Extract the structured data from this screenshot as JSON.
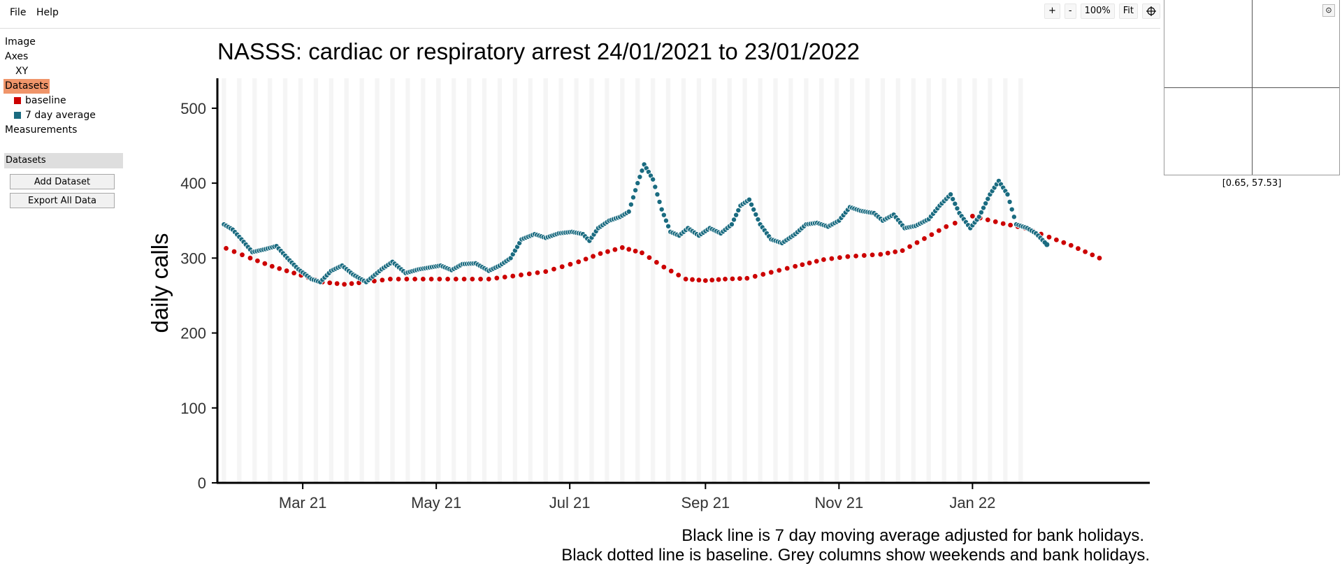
{
  "menu": {
    "file": "File",
    "help": "Help"
  },
  "toolbar": {
    "zoom_in": "+",
    "zoom_out": "-",
    "zoom_level": "100%",
    "fit": "Fit",
    "locate_icon": "crosshair-icon"
  },
  "tree": {
    "image": "Image",
    "axes": "Axes",
    "xy": "XY",
    "datasets": "Datasets",
    "dataset_items": [
      {
        "label": "baseline",
        "color": "#cc0000"
      },
      {
        "label": "7 day average",
        "color": "#1a6b80"
      }
    ],
    "measurements": "Measurements"
  },
  "datasets_panel": {
    "title": "Datasets",
    "add": "Add Dataset",
    "export": "Export All Data"
  },
  "preview": {
    "coordinate": "[0.65, 57.53]",
    "settings_icon": "target-icon"
  },
  "chart_data": {
    "type": "scatter",
    "title": "NASSS: cardiac or respiratory arrest 24/01/2021 to 23/01/2022",
    "ylabel": "daily calls",
    "xlabel": "",
    "ylim": [
      0,
      540
    ],
    "yticks": [
      0,
      100,
      200,
      300,
      400,
      500
    ],
    "xlim": [
      "2021-01-21",
      "2022-03-23"
    ],
    "xticks": [
      {
        "date": "2021-03-01",
        "label": "Mar 21"
      },
      {
        "date": "2021-05-01",
        "label": "May 21"
      },
      {
        "date": "2021-07-01",
        "label": "Jul 21"
      },
      {
        "date": "2021-09-01",
        "label": "Sep 21"
      },
      {
        "date": "2021-11-01",
        "label": "Nov 21"
      },
      {
        "date": "2022-01-01",
        "label": "Jan 22"
      }
    ],
    "grid": false,
    "captions": [
      "Black line is 7 day moving average adjusted for bank holidays.",
      "Black dotted line is baseline. Grey columns show weekends and bank holidays."
    ],
    "series": [
      {
        "name": "baseline",
        "color": "#cc0000",
        "points": [
          [
            "2021-01-25",
            313
          ],
          [
            "2021-02-05",
            300
          ],
          [
            "2021-02-15",
            289
          ],
          [
            "2021-02-25",
            280
          ],
          [
            "2021-03-10",
            268
          ],
          [
            "2021-03-20",
            265
          ],
          [
            "2021-03-30",
            268
          ],
          [
            "2021-04-10",
            272
          ],
          [
            "2021-04-25",
            272
          ],
          [
            "2021-05-10",
            272
          ],
          [
            "2021-05-25",
            272
          ],
          [
            "2021-06-05",
            276
          ],
          [
            "2021-06-20",
            282
          ],
          [
            "2021-07-05",
            295
          ],
          [
            "2021-07-15",
            306
          ],
          [
            "2021-07-25",
            314
          ],
          [
            "2021-08-03",
            307
          ],
          [
            "2021-08-13",
            288
          ],
          [
            "2021-08-23",
            272
          ],
          [
            "2021-09-01",
            270
          ],
          [
            "2021-09-10",
            272
          ],
          [
            "2021-09-20",
            273
          ],
          [
            "2021-10-01",
            281
          ],
          [
            "2021-10-12",
            289
          ],
          [
            "2021-10-25",
            298
          ],
          [
            "2021-11-05",
            302
          ],
          [
            "2021-11-20",
            305
          ],
          [
            "2021-11-30",
            310
          ],
          [
            "2021-12-10",
            326
          ],
          [
            "2021-12-20",
            342
          ],
          [
            "2022-01-01",
            356
          ],
          [
            "2022-01-15",
            346
          ],
          [
            "2022-01-25",
            340
          ],
          [
            "2022-02-05",
            328
          ],
          [
            "2022-02-15",
            317
          ],
          [
            "2022-02-28",
            300
          ]
        ]
      },
      {
        "name": "7 day average",
        "color": "#1a6b80",
        "points": [
          [
            "2021-01-24",
            345
          ],
          [
            "2021-01-28",
            338
          ],
          [
            "2021-02-01",
            325
          ],
          [
            "2021-02-06",
            308
          ],
          [
            "2021-02-12",
            312
          ],
          [
            "2021-02-17",
            316
          ],
          [
            "2021-02-22",
            300
          ],
          [
            "2021-02-27",
            285
          ],
          [
            "2021-03-05",
            272
          ],
          [
            "2021-03-09",
            268
          ],
          [
            "2021-03-14",
            283
          ],
          [
            "2021-03-19",
            290
          ],
          [
            "2021-03-24",
            278
          ],
          [
            "2021-03-30",
            268
          ],
          [
            "2021-04-06",
            285
          ],
          [
            "2021-04-11",
            295
          ],
          [
            "2021-04-17",
            280
          ],
          [
            "2021-04-23",
            285
          ],
          [
            "2021-04-29",
            288
          ],
          [
            "2021-05-03",
            290
          ],
          [
            "2021-05-08",
            284
          ],
          [
            "2021-05-13",
            292
          ],
          [
            "2021-05-19",
            293
          ],
          [
            "2021-05-25",
            283
          ],
          [
            "2021-05-30",
            290
          ],
          [
            "2021-06-04",
            300
          ],
          [
            "2021-06-09",
            325
          ],
          [
            "2021-06-15",
            332
          ],
          [
            "2021-06-20",
            327
          ],
          [
            "2021-06-26",
            333
          ],
          [
            "2021-07-02",
            335
          ],
          [
            "2021-07-07",
            332
          ],
          [
            "2021-07-10",
            323
          ],
          [
            "2021-07-14",
            340
          ],
          [
            "2021-07-19",
            350
          ],
          [
            "2021-07-24",
            355
          ],
          [
            "2021-07-28",
            362
          ],
          [
            "2021-08-01",
            400
          ],
          [
            "2021-08-04",
            425
          ],
          [
            "2021-08-08",
            405
          ],
          [
            "2021-08-12",
            365
          ],
          [
            "2021-08-16",
            335
          ],
          [
            "2021-08-20",
            330
          ],
          [
            "2021-08-24",
            340
          ],
          [
            "2021-08-29",
            330
          ],
          [
            "2021-09-03",
            340
          ],
          [
            "2021-09-08",
            333
          ],
          [
            "2021-09-13",
            345
          ],
          [
            "2021-09-17",
            370
          ],
          [
            "2021-09-21",
            378
          ],
          [
            "2021-09-26",
            345
          ],
          [
            "2021-10-01",
            325
          ],
          [
            "2021-10-06",
            320
          ],
          [
            "2021-10-12",
            332
          ],
          [
            "2021-10-17",
            345
          ],
          [
            "2021-10-22",
            347
          ],
          [
            "2021-10-27",
            342
          ],
          [
            "2021-11-01",
            350
          ],
          [
            "2021-11-06",
            368
          ],
          [
            "2021-11-11",
            363
          ],
          [
            "2021-11-17",
            360
          ],
          [
            "2021-11-21",
            350
          ],
          [
            "2021-11-26",
            358
          ],
          [
            "2021-12-01",
            340
          ],
          [
            "2021-12-06",
            343
          ],
          [
            "2021-12-12",
            352
          ],
          [
            "2021-12-17",
            370
          ],
          [
            "2021-12-22",
            385
          ],
          [
            "2021-12-26",
            360
          ],
          [
            "2021-12-31",
            340
          ],
          [
            "2022-01-04",
            355
          ],
          [
            "2022-01-09",
            385
          ],
          [
            "2022-01-13",
            403
          ],
          [
            "2022-01-17",
            385
          ],
          [
            "2022-01-21",
            345
          ],
          [
            "2022-01-26",
            340
          ],
          [
            "2022-01-30",
            333
          ],
          [
            "2022-02-04",
            318
          ]
        ]
      }
    ]
  }
}
